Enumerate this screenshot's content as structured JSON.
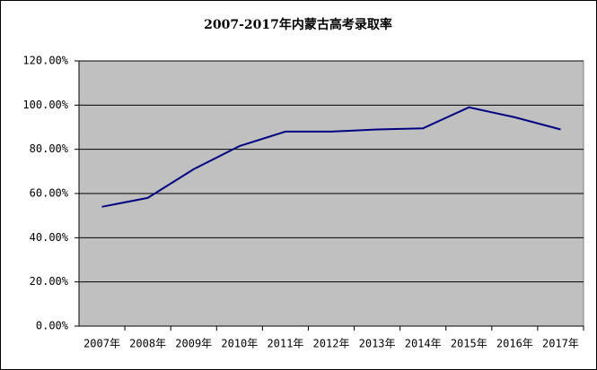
{
  "chart_data": {
    "type": "line",
    "title": "2007-2017年内蒙古高考录取率",
    "categories": [
      "2007年",
      "2008年",
      "2009年",
      "2010年",
      "2011年",
      "2012年",
      "2013年",
      "2014年",
      "2015年",
      "2016年",
      "2017年"
    ],
    "values": [
      54,
      58,
      71,
      81.5,
      88,
      88,
      89,
      89.5,
      99,
      94.5,
      89
    ],
    "color": "#000080",
    "ylim": [
      0,
      120
    ],
    "yticks": [
      {
        "value": 0,
        "label": "0.00%"
      },
      {
        "value": 20,
        "label": "20.00%"
      },
      {
        "value": 40,
        "label": "40.00%"
      },
      {
        "value": 60,
        "label": "60.00%"
      },
      {
        "value": 80,
        "label": "80.00%"
      },
      {
        "value": 100,
        "label": "100.00%"
      },
      {
        "value": 120,
        "label": "120.00%"
      }
    ],
    "grid": true
  }
}
